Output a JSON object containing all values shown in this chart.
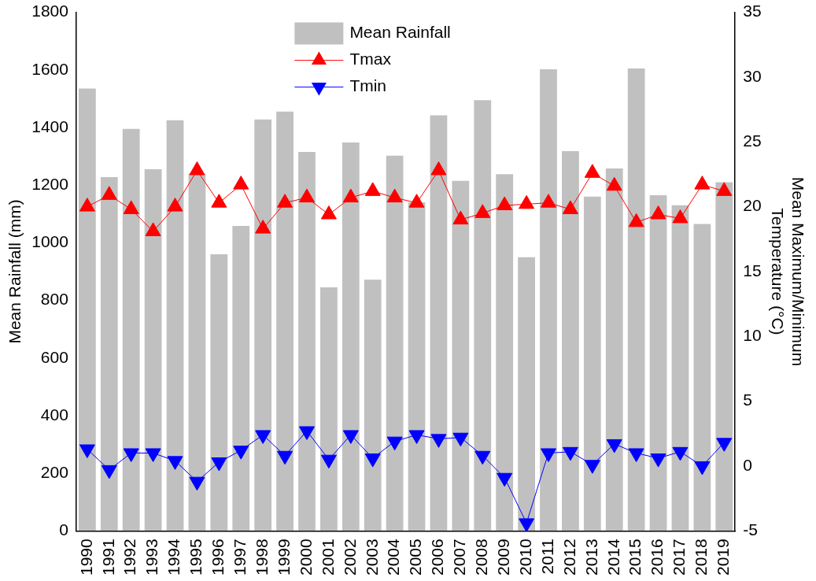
{
  "chart_data": {
    "type": "bar",
    "ylabel": "Mean Rainfall (mm)",
    "y2label": "Mean Maximum/Minimum Temperature (°C)",
    "categories": [
      "1990",
      "1991",
      "1992",
      "1993",
      "1994",
      "1995",
      "1996",
      "1997",
      "1998",
      "1999",
      "2000",
      "2001",
      "2002",
      "2003",
      "2004",
      "2005",
      "2006",
      "2007",
      "2008",
      "2009",
      "2010",
      "2011",
      "2012",
      "2013",
      "2014",
      "2015",
      "2016",
      "2017",
      "2018",
      "2019"
    ],
    "ylim": [
      0,
      1800
    ],
    "yticks": [
      0,
      200,
      400,
      600,
      800,
      1000,
      1200,
      1400,
      1600,
      1800
    ],
    "y2lim": [
      -5,
      35
    ],
    "y2ticks": [
      -5,
      0,
      5,
      10,
      15,
      20,
      25,
      30,
      35
    ],
    "grid": false,
    "legend": "top",
    "line_style": "solid",
    "series": [
      {
        "name": "Mean Rainfall",
        "color": "#c0c0c0",
        "values": [
          1535,
          1228,
          1395,
          1255,
          1425,
          1240,
          960,
          1058,
          1428,
          1455,
          1315,
          845,
          1348,
          872,
          1302,
          1140,
          1442,
          1215,
          1495,
          1238,
          950,
          1602,
          1318,
          1160,
          1258,
          1605,
          1165,
          1130,
          1065,
          1210
        ]
      },
      {
        "name": "Tmax",
        "type": "line",
        "axis": "y2",
        "color": "#ff0000",
        "marker": "triangle",
        "values": [
          20.0,
          20.9,
          19.8,
          18.1,
          20.0,
          22.8,
          20.3,
          21.7,
          18.3,
          20.3,
          20.7,
          19.4,
          20.7,
          21.2,
          20.7,
          20.3,
          22.8,
          19.0,
          19.5,
          20.1,
          20.2,
          20.3,
          19.8,
          22.6,
          21.6,
          18.8,
          19.4,
          19.1,
          21.7,
          21.2
        ]
      },
      {
        "name": "Tmin",
        "type": "line",
        "axis": "y2",
        "color": "#0000ff",
        "marker": "triangle-down",
        "values": [
          1.3,
          -0.3,
          1.0,
          1.0,
          0.4,
          -1.2,
          0.3,
          1.2,
          2.4,
          0.8,
          2.7,
          0.5,
          2.4,
          0.6,
          1.9,
          2.4,
          2.1,
          2.2,
          0.8,
          -0.9,
          -4.4,
          1.0,
          1.1,
          0.1,
          1.7,
          1.0,
          0.6,
          1.1,
          0.0,
          1.8
        ]
      }
    ]
  }
}
